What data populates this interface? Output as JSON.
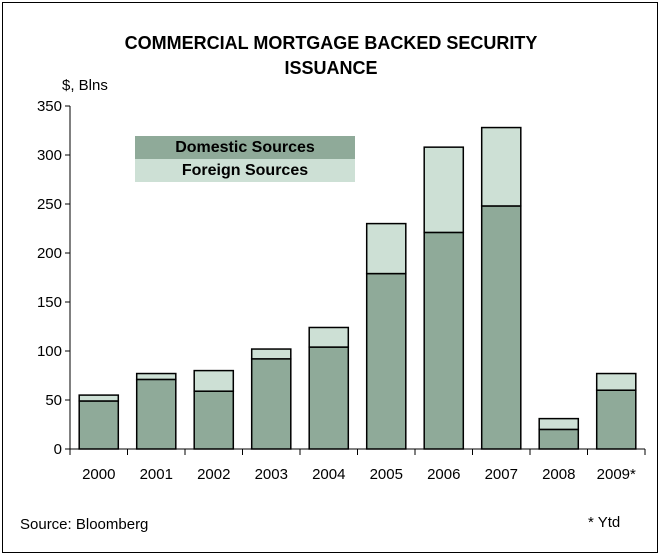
{
  "chart_data": {
    "type": "bar",
    "stacked": true,
    "title": "COMMERCIAL MORTGAGE BACKED SECURITY",
    "title_line2": "ISSUANCE",
    "ylabel": "$, Blns",
    "ylim": [
      0,
      350
    ],
    "yticks": [
      0,
      50,
      100,
      150,
      200,
      250,
      300,
      350
    ],
    "categories": [
      "2000",
      "2001",
      "2002",
      "2003",
      "2004",
      "2005",
      "2006",
      "2007",
      "2008",
      "2009*"
    ],
    "series": [
      {
        "name": "Domestic Sources",
        "color": "#8faa99",
        "values": [
          49,
          71,
          59,
          92,
          104,
          179,
          221,
          248,
          20,
          60
        ]
      },
      {
        "name": "Foreign Sources",
        "color": "#cde0d5",
        "values": [
          6,
          6,
          21,
          10,
          20,
          51,
          87,
          80,
          11,
          17
        ]
      }
    ],
    "legend_position": "top-left",
    "grid": false
  },
  "source": "Source: Bloomberg",
  "footnote": "* Ytd"
}
